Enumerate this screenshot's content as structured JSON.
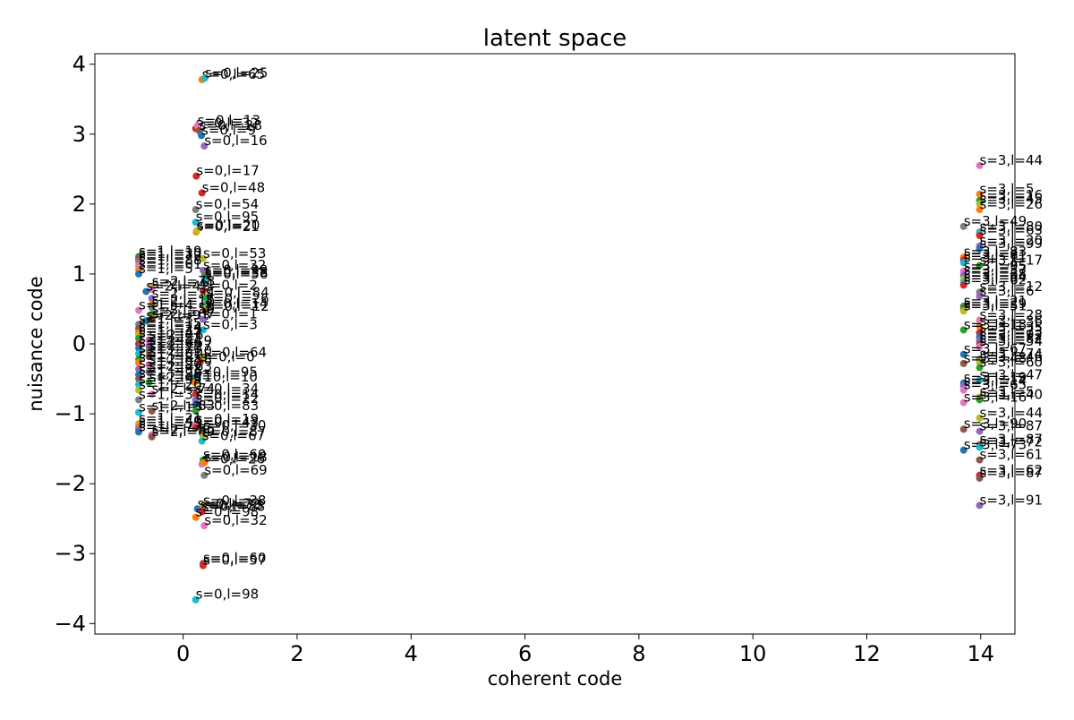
{
  "chart_data": {
    "type": "scatter",
    "title": "latent space",
    "xlabel": "coherent code",
    "ylabel": "nuisance code",
    "xlim": [
      -1.55,
      14.6
    ],
    "ylim": [
      -4.15,
      4.15
    ],
    "x_ticks": [
      0,
      2,
      4,
      6,
      8,
      10,
      12,
      14
    ],
    "y_ticks": [
      4,
      3,
      2,
      1,
      0,
      -1,
      -2,
      -3,
      -4
    ],
    "x_tick_labels": [
      "0",
      "2",
      "4",
      "6",
      "8",
      "10",
      "12",
      "14"
    ],
    "y_tick_labels": [
      "4",
      "3",
      "2",
      "1",
      "0",
      "−1",
      "−2",
      "−3",
      "−4"
    ],
    "grid": false,
    "legend": "none",
    "palette": [
      "#1f77b4",
      "#ff7f0e",
      "#2ca02c",
      "#d62728",
      "#9467bd",
      "#8c564b",
      "#e377c2",
      "#7f7f7f",
      "#bcbd22",
      "#17becf"
    ],
    "points": [
      {
        "x": 0.33,
        "y": 3.78,
        "label": "s=0,l=65",
        "color": "#ff7f0e"
      },
      {
        "x": 0.38,
        "y": 3.8,
        "label": "s=0,l=25",
        "color": "#17becf"
      },
      {
        "x": 0.22,
        "y": 3.08,
        "label": "s=0,l=32",
        "color": "#d62728"
      },
      {
        "x": 0.25,
        "y": 3.12,
        "label": "s=0,l=13",
        "color": "#e377c2"
      },
      {
        "x": 0.28,
        "y": 3.05,
        "label": "s=0,l=28",
        "color": "#8c564b"
      },
      {
        "x": 0.32,
        "y": 2.98,
        "label": "s=0,l=9",
        "color": "#1f77b4"
      },
      {
        "x": 0.37,
        "y": 2.83,
        "label": "s=0,l=16",
        "color": "#9467bd"
      },
      {
        "x": 0.23,
        "y": 2.4,
        "label": "s=0,l=17",
        "color": "#d62728"
      },
      {
        "x": 0.33,
        "y": 2.16,
        "label": "s=0,l=48",
        "color": "#d62728"
      },
      {
        "x": 0.22,
        "y": 1.92,
        "label": "s=0,l=54",
        "color": "#7f7f7f"
      },
      {
        "x": 0.22,
        "y": 1.74,
        "label": "s=0,l=95",
        "color": "#17becf"
      },
      {
        "x": 0.23,
        "y": 1.6,
        "label": "s=0,l=21",
        "color": "#ff7f0e"
      },
      {
        "x": 0.24,
        "y": 1.62,
        "label": "s=0,l=20",
        "color": "#bcbd22"
      },
      {
        "x": -0.78,
        "y": 1.25,
        "label": "s=1,l=19",
        "color": "#2ca02c"
      },
      {
        "x": -0.78,
        "y": 1.22,
        "label": "s=1,l=30",
        "color": "#8c564b"
      },
      {
        "x": -0.78,
        "y": 1.18,
        "label": "s=1,l=72",
        "color": "#7f7f7f"
      },
      {
        "x": 0.35,
        "y": 1.22,
        "label": "s=0,l=53",
        "color": "#bcbd22"
      },
      {
        "x": -0.78,
        "y": 1.12,
        "label": "s=1,l=88",
        "color": "#e377c2"
      },
      {
        "x": -0.78,
        "y": 1.06,
        "label": "s=1,l=61",
        "color": "#ff7f0e"
      },
      {
        "x": 0.35,
        "y": 1.05,
        "label": "s=0,l=32",
        "color": "#9467bd"
      },
      {
        "x": -0.78,
        "y": 1.0,
        "label": "s=1,l=5",
        "color": "#1f77b4"
      },
      {
        "x": 0.38,
        "y": 0.98,
        "label": "s=0,l=99",
        "color": "#2ca02c"
      },
      {
        "x": 0.38,
        "y": 0.95,
        "label": "s=0,l=38",
        "color": "#8c564b"
      },
      {
        "x": 0.38,
        "y": 0.92,
        "label": "s=0,l=56",
        "color": "#17becf"
      },
      {
        "x": -0.55,
        "y": 0.82,
        "label": "s=2,l=78",
        "color": "#bcbd22"
      },
      {
        "x": -0.55,
        "y": 0.78,
        "label": "s=2,l=41",
        "color": "#e377c2"
      },
      {
        "x": -0.65,
        "y": 0.75,
        "label": "s=2,l=42",
        "color": "#1f77b4"
      },
      {
        "x": 0.35,
        "y": 0.76,
        "label": "s=0,l=2",
        "color": "#d62728"
      },
      {
        "x": -0.55,
        "y": 0.65,
        "label": "s=2,l=34",
        "color": "#9467bd"
      },
      {
        "x": 0.4,
        "y": 0.66,
        "label": "s=0,l=84",
        "color": "#2ca02c"
      },
      {
        "x": -0.55,
        "y": 0.56,
        "label": "s=2,l=11",
        "color": "#ff7f0e"
      },
      {
        "x": 0.4,
        "y": 0.57,
        "label": "s=0,l=26",
        "color": "#17becf"
      },
      {
        "x": -0.55,
        "y": 0.52,
        "label": "s=2,l=10",
        "color": "#7f7f7f"
      },
      {
        "x": -0.78,
        "y": 0.48,
        "label": "s=1,l=4",
        "color": "#e377c2"
      },
      {
        "x": 0.38,
        "y": 0.5,
        "label": "s=0,l=14",
        "color": "#bcbd22"
      },
      {
        "x": 0.4,
        "y": 0.46,
        "label": "s=0,l=12",
        "color": "#8c564b"
      },
      {
        "x": -0.55,
        "y": 0.42,
        "label": "s=2,l=59",
        "color": "#2ca02c"
      },
      {
        "x": -0.55,
        "y": 0.35,
        "label": "s=2,l=67",
        "color": "#d62728"
      },
      {
        "x": -0.65,
        "y": 0.33,
        "label": "s=2,l=91",
        "color": "#1f77b4"
      },
      {
        "x": 0.35,
        "y": 0.35,
        "label": "s=0,l=1",
        "color": "#9467bd"
      },
      {
        "x": -0.78,
        "y": 0.28,
        "label": "s=1,l=3",
        "color": "#7f7f7f"
      },
      {
        "x": -0.78,
        "y": 0.22,
        "label": "s=1,l=15",
        "color": "#8c564b"
      },
      {
        "x": 0.35,
        "y": 0.2,
        "label": "s=0,l=3",
        "color": "#17becf"
      },
      {
        "x": -0.78,
        "y": 0.16,
        "label": "s=1,l=24",
        "color": "#ff7f0e"
      },
      {
        "x": -0.78,
        "y": 0.12,
        "label": "s=1,l=33",
        "color": "#bcbd22"
      },
      {
        "x": -0.78,
        "y": 0.08,
        "label": "s=1,l=47",
        "color": "#2ca02c"
      },
      {
        "x": -0.6,
        "y": 0.05,
        "label": "s=2,l=6",
        "color": "#e377c2"
      },
      {
        "x": -0.78,
        "y": 0.0,
        "label": "s=1,l=52",
        "color": "#d62728"
      },
      {
        "x": -0.6,
        "y": -0.03,
        "label": "s=2,l=19",
        "color": "#9467bd"
      },
      {
        "x": -0.78,
        "y": -0.06,
        "label": "s=1,l=66",
        "color": "#1f77b4"
      },
      {
        "x": -0.6,
        "y": -0.1,
        "label": "s=2,l=27",
        "color": "#7f7f7f"
      },
      {
        "x": -0.78,
        "y": -0.14,
        "label": "s=1,l=70",
        "color": "#17becf"
      },
      {
        "x": -0.6,
        "y": -0.18,
        "label": "s=2,l=50",
        "color": "#8c564b"
      },
      {
        "x": -0.78,
        "y": -0.22,
        "label": "s=1,l=81",
        "color": "#2ca02c"
      },
      {
        "x": 0.36,
        "y": -0.2,
        "label": "s=0,l=64",
        "color": "#bcbd22"
      },
      {
        "x": -0.78,
        "y": -0.27,
        "label": "s=1,l=85",
        "color": "#ff7f0e"
      },
      {
        "x": -0.6,
        "y": -0.3,
        "label": "s=2,l=58",
        "color": "#e377c2"
      },
      {
        "x": 0.3,
        "y": -0.26,
        "label": "s=0,l=0",
        "color": "#d62728"
      },
      {
        "x": -0.78,
        "y": -0.36,
        "label": "s=1,l=90",
        "color": "#9467bd"
      },
      {
        "x": -0.6,
        "y": -0.4,
        "label": "s=2,l=63",
        "color": "#7f7f7f"
      },
      {
        "x": -0.78,
        "y": -0.44,
        "label": "s=1,l=93",
        "color": "#1f77b4"
      },
      {
        "x": 0.2,
        "y": -0.48,
        "label": "s=0,l=95",
        "color": "#17becf"
      },
      {
        "x": -0.78,
        "y": -0.5,
        "label": "s=1,l=98",
        "color": "#8c564b"
      },
      {
        "x": -0.6,
        "y": -0.55,
        "label": "s=2,l=71",
        "color": "#2ca02c"
      },
      {
        "x": 0.2,
        "y": -0.55,
        "label": "s=0,l=10",
        "color": "#ff7f0e"
      },
      {
        "x": -0.78,
        "y": -0.58,
        "label": "s=1,l=99",
        "color": "#17becf"
      },
      {
        "x": -0.78,
        "y": -0.66,
        "label": "s=1,l=20",
        "color": "#bcbd22"
      },
      {
        "x": -0.55,
        "y": -0.72,
        "label": "s=2,l=74",
        "color": "#e377c2"
      },
      {
        "x": 0.22,
        "y": -0.72,
        "label": "s=0,l=34",
        "color": "#d62728"
      },
      {
        "x": -0.78,
        "y": -0.8,
        "label": "s=1,l=37",
        "color": "#7f7f7f"
      },
      {
        "x": 0.22,
        "y": -0.8,
        "label": "s=0,l=14",
        "color": "#9467bd"
      },
      {
        "x": 0.22,
        "y": -0.86,
        "label": "s=0,l=22",
        "color": "#1f77b4"
      },
      {
        "x": -0.78,
        "y": -0.98,
        "label": "s=1,l=13",
        "color": "#17becf"
      },
      {
        "x": -0.55,
        "y": -0.96,
        "label": "s=2,l=83",
        "color": "#8c564b"
      },
      {
        "x": 0.22,
        "y": -0.96,
        "label": "s=0,l=83",
        "color": "#2ca02c"
      },
      {
        "x": -0.78,
        "y": -1.14,
        "label": "s=1,l=21",
        "color": "#bcbd22"
      },
      {
        "x": -0.78,
        "y": -1.18,
        "label": "s=1,l=40",
        "color": "#ff7f0e"
      },
      {
        "x": 0.22,
        "y": -1.15,
        "label": "s=0,l=19",
        "color": "#e377c2"
      },
      {
        "x": -0.78,
        "y": -1.22,
        "label": "s=1,l=55",
        "color": "#9467bd"
      },
      {
        "x": 0.22,
        "y": -1.2,
        "label": "s=0,l=43",
        "color": "#d62728"
      },
      {
        "x": -0.78,
        "y": -1.26,
        "label": "s=1,l=77",
        "color": "#1f77b4"
      },
      {
        "x": 0.35,
        "y": -1.24,
        "label": "s=0,l=30",
        "color": "#7f7f7f"
      },
      {
        "x": -0.55,
        "y": -1.3,
        "label": "s=2,l=86",
        "color": "#e377c2"
      },
      {
        "x": -0.55,
        "y": -1.33,
        "label": "s=2,l=89",
        "color": "#8c564b"
      },
      {
        "x": 0.35,
        "y": -1.33,
        "label": "s=0,l=87",
        "color": "#bcbd22"
      },
      {
        "x": 0.33,
        "y": -1.39,
        "label": "s=0,l=67",
        "color": "#17becf"
      },
      {
        "x": 0.35,
        "y": -1.66,
        "label": "s=0,l=60",
        "color": "#2ca02c"
      },
      {
        "x": 0.33,
        "y": -1.72,
        "label": "s=0,l=26",
        "color": "#e377c2"
      },
      {
        "x": 0.37,
        "y": -1.7,
        "label": "s=0,l=18",
        "color": "#ff7f0e"
      },
      {
        "x": 0.37,
        "y": -1.88,
        "label": "s=0,l=69",
        "color": "#7f7f7f"
      },
      {
        "x": 0.35,
        "y": -2.32,
        "label": "s=0,l=38",
        "color": "#bcbd22"
      },
      {
        "x": 0.25,
        "y": -2.36,
        "label": "s=0,l=72",
        "color": "#1f77b4"
      },
      {
        "x": 0.3,
        "y": -2.38,
        "label": "s=0,l=73",
        "color": "#9467bd"
      },
      {
        "x": 0.33,
        "y": -2.4,
        "label": "s=0,l=88",
        "color": "#d62728"
      },
      {
        "x": 0.22,
        "y": -2.48,
        "label": "s=0,l=98",
        "color": "#ff7f0e"
      },
      {
        "x": 0.37,
        "y": -2.6,
        "label": "s=0,l=32",
        "color": "#e377c2"
      },
      {
        "x": 0.35,
        "y": -3.14,
        "label": "s=0,l=60",
        "color": "#8c564b"
      },
      {
        "x": 0.35,
        "y": -3.17,
        "label": "s=0,l=57",
        "color": "#d62728"
      },
      {
        "x": 0.22,
        "y": -3.66,
        "label": "s=0,l=98",
        "color": "#17becf"
      },
      {
        "x": 13.98,
        "y": 2.55,
        "label": "s=3,l=44",
        "color": "#e377c2"
      },
      {
        "x": 13.98,
        "y": 2.14,
        "label": "s=3,l=5",
        "color": "#ff7f0e"
      },
      {
        "x": 13.98,
        "y": 2.05,
        "label": "s=3,l=16",
        "color": "#2ca02c"
      },
      {
        "x": 13.98,
        "y": 2.0,
        "label": "s=3,l=45",
        "color": "#bcbd22"
      },
      {
        "x": 13.98,
        "y": 1.92,
        "label": "s=3,l=26",
        "color": "#ff7f0e"
      },
      {
        "x": 13.7,
        "y": 1.68,
        "label": "s=3,l=49",
        "color": "#7f7f7f"
      },
      {
        "x": 13.98,
        "y": 1.6,
        "label": "s=3,l=80",
        "color": "#17becf"
      },
      {
        "x": 13.98,
        "y": 1.55,
        "label": "s=3,l=63",
        "color": "#d62728"
      },
      {
        "x": 13.98,
        "y": 1.4,
        "label": "s=3,l=20",
        "color": "#9467bd"
      },
      {
        "x": 13.98,
        "y": 1.36,
        "label": "s=3,l=99",
        "color": "#1f77b4"
      },
      {
        "x": 13.7,
        "y": 1.24,
        "label": "s=3,l=83",
        "color": "#ff7f0e"
      },
      {
        "x": 13.7,
        "y": 1.2,
        "label": "s=3,l=81",
        "color": "#d62728"
      },
      {
        "x": 13.7,
        "y": 1.16,
        "label": "s=3,l=11",
        "color": "#17becf"
      },
      {
        "x": 13.98,
        "y": 1.12,
        "label": "s=3,l=17",
        "color": "#2ca02c"
      },
      {
        "x": 13.7,
        "y": 1.04,
        "label": "s=3,l=95",
        "color": "#e377c2"
      },
      {
        "x": 13.7,
        "y": 0.98,
        "label": "s=3,l=57",
        "color": "#9467bd"
      },
      {
        "x": 13.7,
        "y": 0.92,
        "label": "s=3,l=68",
        "color": "#bcbd22"
      },
      {
        "x": 13.7,
        "y": 0.88,
        "label": "s=3,l=64",
        "color": "#17becf"
      },
      {
        "x": 13.7,
        "y": 0.84,
        "label": "s=3,l=62",
        "color": "#d62728"
      },
      {
        "x": 13.98,
        "y": 0.74,
        "label": "s=3,l=12",
        "color": "#7f7f7f"
      },
      {
        "x": 13.98,
        "y": 0.68,
        "label": "s=3,l=6",
        "color": "#9467bd"
      },
      {
        "x": 13.7,
        "y": 0.54,
        "label": "s=3,l=21",
        "color": "#2ca02c"
      },
      {
        "x": 13.7,
        "y": 0.5,
        "label": "s=3,l=29",
        "color": "#8c564b"
      },
      {
        "x": 13.7,
        "y": 0.47,
        "label": "s=3,l=51",
        "color": "#bcbd22"
      },
      {
        "x": 13.98,
        "y": 0.34,
        "label": "s=3,l=28",
        "color": "#e377c2"
      },
      {
        "x": 13.98,
        "y": 0.25,
        "label": "s=3,l=36",
        "color": "#ff7f0e"
      },
      {
        "x": 13.7,
        "y": 0.2,
        "label": "s=3,l=18",
        "color": "#2ca02c"
      },
      {
        "x": 13.98,
        "y": 0.16,
        "label": "s=3,l=35",
        "color": "#d62728"
      },
      {
        "x": 13.98,
        "y": 0.1,
        "label": "s=3,l=73",
        "color": "#1f77b4"
      },
      {
        "x": 13.98,
        "y": 0.05,
        "label": "s=3,l=92",
        "color": "#9467bd"
      },
      {
        "x": 13.98,
        "y": 0.0,
        "label": "s=3,l=82",
        "color": "#8c564b"
      },
      {
        "x": 13.98,
        "y": -0.04,
        "label": "s=3,l=54",
        "color": "#e377c2"
      },
      {
        "x": 13.7,
        "y": -0.15,
        "label": "s=3,l=67",
        "color": "#1f77b4"
      },
      {
        "x": 13.98,
        "y": -0.22,
        "label": "s=3,l=74",
        "color": "#7f7f7f"
      },
      {
        "x": 13.98,
        "y": -0.26,
        "label": "s=3,l=46",
        "color": "#bcbd22"
      },
      {
        "x": 13.7,
        "y": -0.28,
        "label": "s=3,l=48",
        "color": "#8c564b"
      },
      {
        "x": 13.98,
        "y": -0.34,
        "label": "s=3,l=60",
        "color": "#2ca02c"
      },
      {
        "x": 13.98,
        "y": -0.52,
        "label": "s=3,l=47",
        "color": "#17becf"
      },
      {
        "x": 13.7,
        "y": -0.56,
        "label": "s=3,l=19",
        "color": "#1f77b4"
      },
      {
        "x": 13.7,
        "y": -0.6,
        "label": "s=3,l=14",
        "color": "#9467bd"
      },
      {
        "x": 13.7,
        "y": -0.66,
        "label": "s=3,l=65",
        "color": "#e377c2"
      },
      {
        "x": 13.98,
        "y": -0.76,
        "label": "s=3,l=5",
        "color": "#bcbd22"
      },
      {
        "x": 13.98,
        "y": -0.8,
        "label": "s=3,l=40",
        "color": "#2ca02c"
      },
      {
        "x": 13.7,
        "y": -0.84,
        "label": "s=3,l=16",
        "color": "#e377c2"
      },
      {
        "x": 13.98,
        "y": -1.06,
        "label": "s=3,l=44",
        "color": "#bcbd22"
      },
      {
        "x": 13.7,
        "y": -1.22,
        "label": "s=3,l=90",
        "color": "#8c564b"
      },
      {
        "x": 13.98,
        "y": -1.25,
        "label": "s=3,l=87",
        "color": "#9467bd"
      },
      {
        "x": 13.98,
        "y": -1.44,
        "label": "s=3,l=87",
        "color": "#7f7f7f"
      },
      {
        "x": 13.7,
        "y": -1.52,
        "label": "s=3,l=73",
        "color": "#1f77b4"
      },
      {
        "x": 13.98,
        "y": -1.48,
        "label": "s=3,l=72",
        "color": "#17becf"
      },
      {
        "x": 13.98,
        "y": -1.66,
        "label": "s=3,l=61",
        "color": "#8c564b"
      },
      {
        "x": 13.98,
        "y": -1.88,
        "label": "s=3,l=62",
        "color": "#d62728"
      },
      {
        "x": 13.98,
        "y": -1.92,
        "label": "s=3,l=87",
        "color": "#8c564b"
      },
      {
        "x": 13.98,
        "y": -2.31,
        "label": "s=3,l=91",
        "color": "#9467bd"
      }
    ]
  }
}
